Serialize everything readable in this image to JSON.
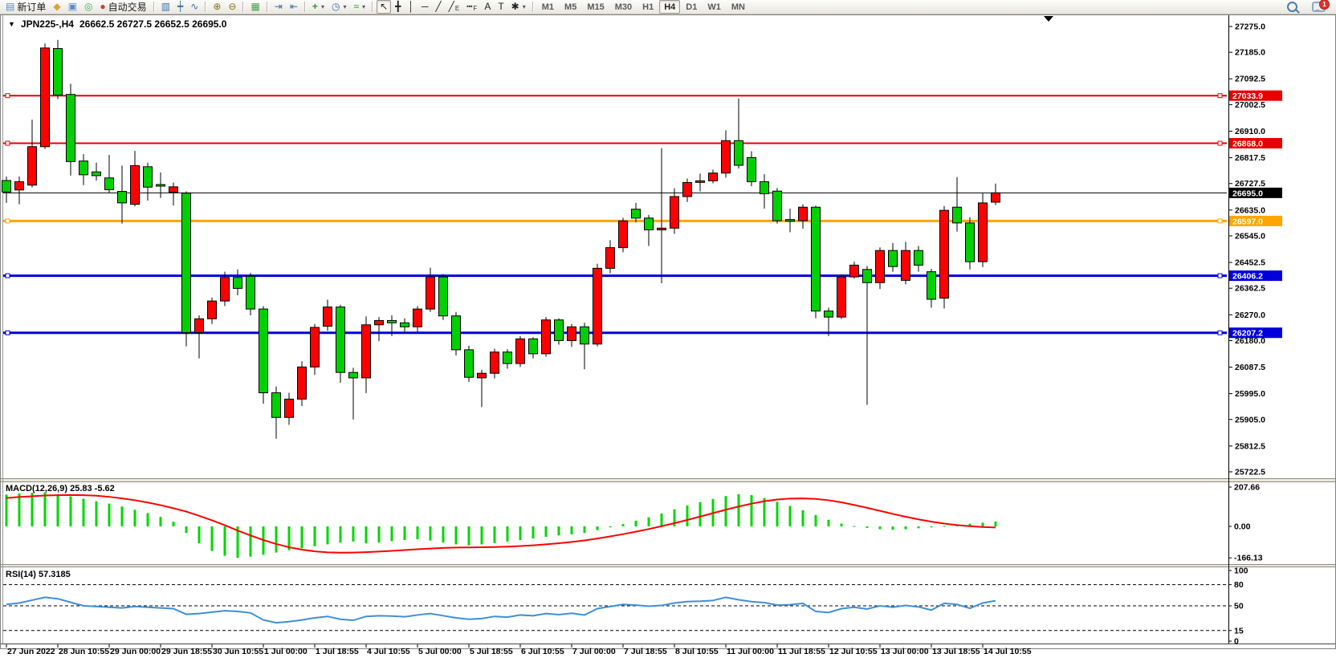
{
  "toolbar": {
    "groups": [
      {
        "name": "trade",
        "items": [
          {
            "name": "new-order-button",
            "glyph": "▤",
            "glyph_color": "#5b8ac6",
            "label": "新订单"
          },
          {
            "name": "stamp-icon-button",
            "glyph": "◆",
            "glyph_color": "#d9a62e"
          },
          {
            "name": "market-watch-button",
            "glyph": "▣",
            "glyph_color": "#5b8ac6"
          },
          {
            "name": "signal-button",
            "glyph": "◎",
            "glyph_color": "#3fae49"
          },
          {
            "name": "auto-trading-button",
            "glyph": "●",
            "glyph_color": "#d43b30",
            "label": "自动交易"
          }
        ]
      },
      {
        "name": "chart-type",
        "items": [
          {
            "name": "bar-chart-button",
            "glyph": "▥",
            "glyph_color": "#3a6ea5"
          },
          {
            "name": "candlestick-button",
            "glyph": "┿",
            "glyph_color": "#3a6ea5"
          },
          {
            "name": "line-chart-button",
            "glyph": "∿",
            "glyph_color": "#3a6ea5"
          }
        ]
      },
      {
        "name": "zoom",
        "items": [
          {
            "name": "zoom-in-button",
            "glyph": "⊕",
            "glyph_color": "#8a6d1f"
          },
          {
            "name": "zoom-out-button",
            "glyph": "⊖",
            "glyph_color": "#8a6d1f"
          }
        ]
      },
      {
        "name": "windows",
        "items": [
          {
            "name": "tile-windows-button",
            "glyph": "▦",
            "glyph_color": "#46a049"
          }
        ]
      },
      {
        "name": "scrolling",
        "items": [
          {
            "name": "auto-scroll-button",
            "glyph": "⇥",
            "glyph_color": "#3a6ea5"
          },
          {
            "name": "chart-shift-button",
            "glyph": "⇤",
            "glyph_color": "#3a6ea5"
          }
        ]
      },
      {
        "name": "insert",
        "items": [
          {
            "name": "indicators-button",
            "glyph": "+",
            "glyph_color": "#1f9e1f",
            "dropdown": true
          },
          {
            "name": "periods-button",
            "glyph": "◷",
            "glyph_color": "#3a6ea5",
            "dropdown": true
          },
          {
            "name": "templates-button",
            "glyph": "≈",
            "glyph_color": "#1f9e1f",
            "dropdown": true
          }
        ]
      },
      {
        "name": "tools",
        "items": [
          {
            "name": "cursor-button",
            "glyph": "↖",
            "glyph_color": "#222",
            "active": true
          },
          {
            "name": "crosshair-button",
            "glyph": "╋",
            "glyph_color": "#222"
          },
          {
            "name": "vertical-line-button",
            "glyph": "│",
            "glyph_color": "#222"
          },
          {
            "name": "horizontal-line-button",
            "glyph": "─",
            "glyph_color": "#222"
          },
          {
            "name": "trendline-button",
            "glyph": "╱",
            "glyph_color": "#222"
          },
          {
            "name": "channel-button",
            "glyph": "╱",
            "glyph_color": "#222",
            "sub": "E"
          },
          {
            "name": "fibonacci-button",
            "glyph": "┅",
            "glyph_color": "#222",
            "sub": "F"
          },
          {
            "name": "text-button",
            "glyph": "A",
            "glyph_color": "#222"
          },
          {
            "name": "label-button",
            "glyph": "T",
            "glyph_color": "#222"
          },
          {
            "name": "arrows-button",
            "glyph": "✱",
            "glyph_color": "#222",
            "dropdown": true
          }
        ]
      }
    ],
    "timeframes": {
      "items": [
        "M1",
        "M5",
        "M15",
        "M30",
        "H1",
        "H4",
        "D1",
        "W1",
        "MN"
      ],
      "active": "H4"
    },
    "right": {
      "search_name": "search-button",
      "chat_name": "chat-button",
      "chat_badge": "1"
    }
  },
  "chart": {
    "title_marker": "▼",
    "symbol_period": "JPN225-,H4",
    "ohlc_text": "26662.5 26727.5 26652.5 26695.0"
  },
  "indicators_text": {
    "macd_label": "MACD(12,26,9) 25.83 -5.62",
    "rsi_label": "RSI(14) 57.3185"
  },
  "chart_data": {
    "type": "candlestick",
    "symbol": "JPN225-,H4",
    "up_color": "#ff0000",
    "down_color": "#00d000",
    "note": "red = bullish, green = bearish (CN convention)",
    "current_price": "26695.0",
    "price_axis": {
      "max": 27275.0,
      "min": 25722.5,
      "ticks": [
        27275.0,
        27185.0,
        27092.5,
        27002.5,
        26910.0,
        26817.5,
        26727.5,
        26635.0,
        26545.0,
        26452.5,
        26362.5,
        26270.0,
        26180.0,
        26087.5,
        25995.0,
        25905.0,
        25812.5,
        25722.5
      ],
      "tags": [
        {
          "text": "27033.9",
          "color": "#e80000",
          "name": "resistance-1"
        },
        {
          "text": "26868.0",
          "color": "#e80000",
          "name": "resistance-2"
        },
        {
          "text": "26695.0",
          "color": "#000000",
          "name": "current-price"
        },
        {
          "text": "26597.0",
          "color": "#ffa500",
          "name": "pivot"
        },
        {
          "text": "26406.2",
          "color": "#0000dd",
          "name": "support-1"
        },
        {
          "text": "26207.2",
          "color": "#0000dd",
          "name": "support-2"
        }
      ]
    },
    "hlines": [
      {
        "price": 27033.9,
        "color": "#e80000",
        "width": 2
      },
      {
        "price": 26868.0,
        "color": "#e80000",
        "width": 2
      },
      {
        "price": 26597.0,
        "color": "#ffa500",
        "width": 3
      },
      {
        "price": 26406.2,
        "color": "#0000dd",
        "width": 3
      },
      {
        "price": 26207.2,
        "color": "#0000dd",
        "width": 3
      }
    ],
    "x_labels": [
      "27 Jun 2022",
      "28 Jun 10:55",
      "29 Jun 00:00",
      "29 Jun 18:55",
      "30 Jun 10:55",
      "1 Jul 00:00",
      "1 Jul 18:55",
      "4 Jul 10:55",
      "5 Jul 00:00",
      "5 Jul 18:55",
      "6 Jul 10:55",
      "7 Jul 00:00",
      "7 Jul 18:55",
      "8 Jul 10:55",
      "11 Jul 00:00",
      "11 Jul 18:55",
      "12 Jul 10:55",
      "13 Jul 00:00",
      "13 Jul 18:55",
      "14 Jul 10:55"
    ],
    "candles": [
      [
        26738,
        26752,
        26660,
        26698
      ],
      [
        26705,
        26752,
        26655,
        26734
      ],
      [
        26722,
        26950,
        26714,
        26856
      ],
      [
        26856,
        27216,
        26848,
        27200
      ],
      [
        27198,
        27228,
        27022,
        27036
      ],
      [
        27038,
        27075,
        26755,
        26804
      ],
      [
        26806,
        26830,
        26722,
        26758
      ],
      [
        26768,
        26800,
        26738,
        26755
      ],
      [
        26747,
        26827,
        26694,
        26706
      ],
      [
        26700,
        26790,
        26588,
        26660
      ],
      [
        26655,
        26841,
        26648,
        26790
      ],
      [
        26786,
        26800,
        26668,
        26715
      ],
      [
        26724,
        26766,
        26677,
        26719
      ],
      [
        26697,
        26731,
        26651,
        26716
      ],
      [
        26694,
        26700,
        26160,
        26208
      ],
      [
        26208,
        26268,
        26118,
        26256
      ],
      [
        26256,
        26330,
        26238,
        26318
      ],
      [
        26318,
        26420,
        26300,
        26400
      ],
      [
        26400,
        26428,
        26338,
        26362
      ],
      [
        26404,
        26416,
        26268,
        26290
      ],
      [
        26290,
        26300,
        25960,
        25998
      ],
      [
        25998,
        26020,
        25838,
        25912
      ],
      [
        25912,
        25998,
        25886,
        25976
      ],
      [
        25976,
        26108,
        25952,
        26088
      ],
      [
        26088,
        26238,
        26060,
        26226
      ],
      [
        26230,
        26323,
        26214,
        26297
      ],
      [
        26297,
        26305,
        26033,
        26069
      ],
      [
        26069,
        26085,
        25905,
        26050
      ],
      [
        26050,
        26264,
        25997,
        26235
      ],
      [
        26235,
        26262,
        26178,
        26250
      ],
      [
        26250,
        26268,
        26196,
        26242
      ],
      [
        26242,
        26258,
        26205,
        26228
      ],
      [
        26228,
        26300,
        26210,
        26290
      ],
      [
        26290,
        26434,
        26280,
        26402
      ],
      [
        26402,
        26412,
        26252,
        26266
      ],
      [
        26266,
        26280,
        26128,
        26148
      ],
      [
        26148,
        26162,
        26036,
        26052
      ],
      [
        26050,
        26078,
        25948,
        26066
      ],
      [
        26066,
        26152,
        26048,
        26140
      ],
      [
        26140,
        26150,
        26082,
        26100
      ],
      [
        26100,
        26196,
        26088,
        26186
      ],
      [
        26186,
        26192,
        26118,
        26134
      ],
      [
        26134,
        26262,
        26124,
        26252
      ],
      [
        26252,
        26258,
        26166,
        26180
      ],
      [
        26180,
        26238,
        26158,
        26228
      ],
      [
        26228,
        26242,
        26080,
        26168
      ],
      [
        26168,
        26448,
        26160,
        26432
      ],
      [
        26432,
        26530,
        26415,
        26504
      ],
      [
        26504,
        26608,
        26488,
        26597
      ],
      [
        26638,
        26660,
        26592,
        26607
      ],
      [
        26607,
        26618,
        26510,
        26566
      ],
      [
        26566,
        26851,
        26380,
        26572
      ],
      [
        26572,
        26711,
        26552,
        26682
      ],
      [
        26682,
        26745,
        26663,
        26731
      ],
      [
        26732,
        26762,
        26700,
        26737
      ],
      [
        26737,
        26776,
        26728,
        26764
      ],
      [
        26764,
        26913,
        26748,
        26877
      ],
      [
        26877,
        27024,
        26780,
        26791
      ],
      [
        26818,
        26840,
        26718,
        26734
      ],
      [
        26734,
        26760,
        26640,
        26692
      ],
      [
        26701,
        26712,
        26588,
        26598
      ],
      [
        26602,
        26640,
        26558,
        26598
      ],
      [
        26598,
        26655,
        26570,
        26645
      ],
      [
        26645,
        26650,
        26258,
        26283
      ],
      [
        26283,
        26295,
        26196,
        26262
      ],
      [
        26262,
        26411,
        26255,
        26402
      ],
      [
        26402,
        26455,
        26396,
        26443
      ],
      [
        26428,
        26440,
        25956,
        26382
      ],
      [
        26382,
        26505,
        26360,
        26494
      ],
      [
        26494,
        26520,
        26420,
        26438
      ],
      [
        26390,
        26524,
        26376,
        26494
      ],
      [
        26494,
        26510,
        26420,
        26443
      ],
      [
        26420,
        26430,
        26295,
        26324
      ],
      [
        26328,
        26649,
        26292,
        26634
      ],
      [
        26645,
        26750,
        26560,
        26590
      ],
      [
        26590,
        26610,
        26428,
        26455
      ],
      [
        26455,
        26696,
        26436,
        26660
      ],
      [
        26662.5,
        26727.5,
        26652.5,
        26695
      ]
    ],
    "indicators": {
      "macd": {
        "params": "12,26,9",
        "value_main": "25.83",
        "value_signal": "-5.62",
        "axis_ticks": [
          "207.66",
          "0.00",
          "-166.13"
        ],
        "axis_max": 207.66,
        "histogram_color": "#00d800",
        "signal_color": "#ff0000",
        "histogram": [
          168,
          174,
          178,
          180,
          170,
          158,
          146,
          133,
          120,
          105,
          88,
          70,
          50,
          25,
          -35,
          -90,
          -130,
          -155,
          -166,
          -160,
          -150,
          -138,
          -126,
          -116,
          -105,
          -95,
          -86,
          -80,
          -90,
          -85,
          -78,
          -72,
          -68,
          -75,
          -85,
          -95,
          -100,
          -95,
          -88,
          -80,
          -72,
          -64,
          -55,
          -48,
          -42,
          -35,
          -20,
          -5,
          12,
          30,
          48,
          68,
          90,
          110,
          128,
          145,
          160,
          170,
          165,
          150,
          130,
          108,
          85,
          60,
          35,
          15,
          2,
          -8,
          -15,
          -18,
          -15,
          -10,
          -5,
          2,
          8,
          14,
          20,
          26
        ],
        "signal": [
          150,
          155,
          159,
          163,
          165,
          166,
          165,
          162,
          156,
          148,
          138,
          126,
          112,
          96,
          78,
          56,
          32,
          6,
          -22,
          -48,
          -72,
          -93,
          -110,
          -123,
          -132,
          -137,
          -139,
          -138,
          -136,
          -133,
          -129,
          -125,
          -121,
          -117,
          -114,
          -112,
          -111,
          -110,
          -109,
          -107,
          -104,
          -100,
          -95,
          -89,
          -82,
          -74,
          -64,
          -53,
          -41,
          -28,
          -14,
          1,
          17,
          34,
          52,
          70,
          88,
          105,
          120,
          133,
          142,
          147,
          148,
          145,
          138,
          127,
          113,
          98,
          82,
          66,
          51,
          37,
          25,
          15,
          7,
          1,
          -3,
          -5.6
        ]
      },
      "rsi": {
        "period": "14",
        "value": "57.3185",
        "line_color": "#3e8fd8",
        "axis_ticks": [
          "100",
          "80",
          "50",
          "15",
          "0"
        ],
        "levels": [
          80,
          50,
          15
        ],
        "values": [
          52,
          54,
          58,
          62,
          60,
          55,
          50,
          49,
          48,
          47,
          49,
          48,
          47,
          46,
          38,
          39,
          41,
          43,
          42,
          40,
          30,
          26,
          27.5,
          30,
          33,
          35,
          31,
          29.5,
          35,
          36,
          35.5,
          34.5,
          37,
          39,
          36,
          33,
          31,
          32,
          35,
          34,
          37,
          36,
          39,
          37.5,
          39.5,
          37,
          46,
          49,
          52,
          51,
          49.5,
          50.5,
          54,
          56,
          56.5,
          57.5,
          62,
          58.5,
          56,
          54.5,
          51,
          51.5,
          53.5,
          42,
          40.5,
          46,
          48,
          45.5,
          50,
          48,
          50.5,
          48.5,
          44,
          53.5,
          52,
          46.5,
          54,
          57.32
        ]
      }
    }
  }
}
